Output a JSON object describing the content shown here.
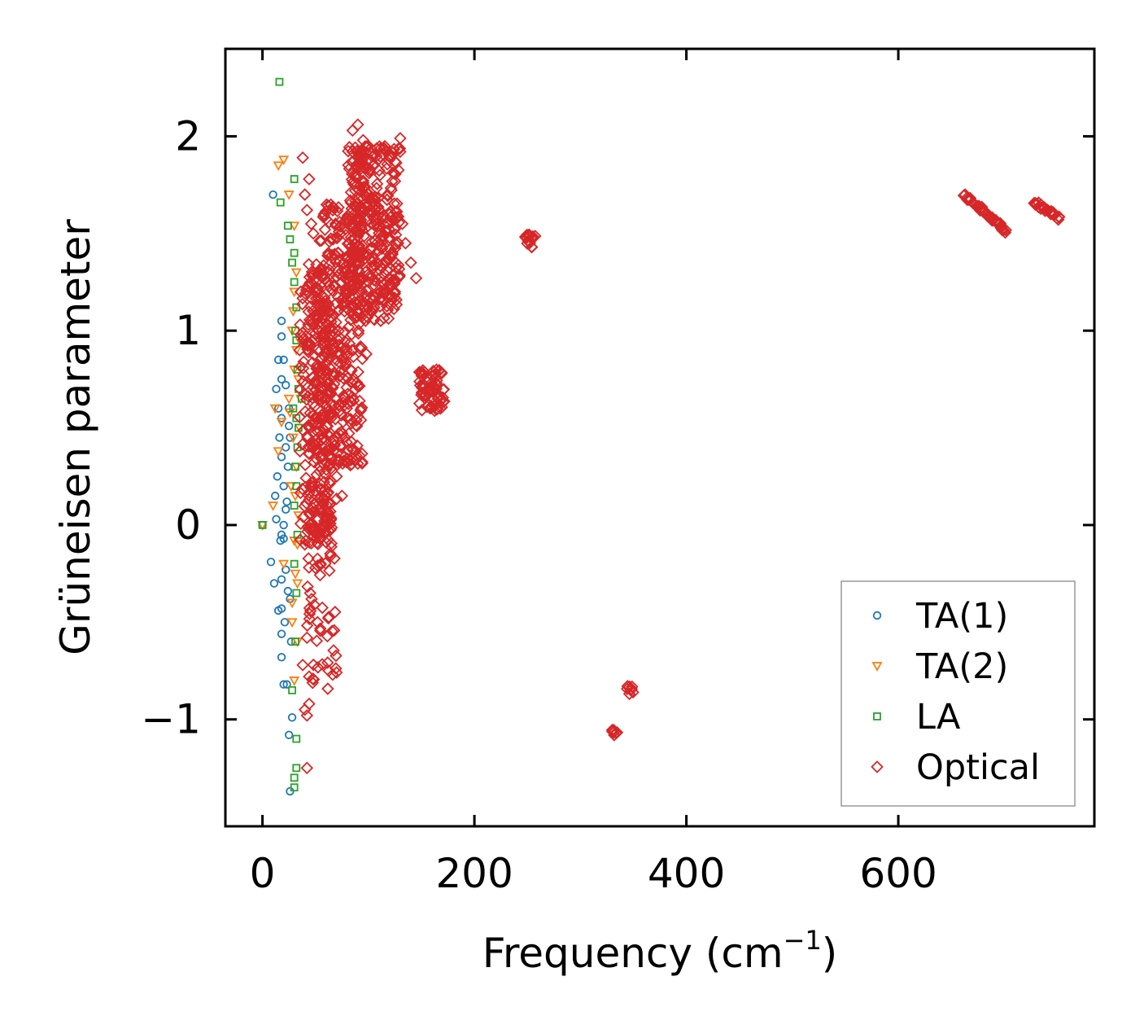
{
  "chart_data": {
    "type": "scatter",
    "xlabel": "Frequency (cm",
    "xlabel_sup": "−1",
    "xlabel_close": ")",
    "ylabel": "Grüneisen parameter",
    "xlim": [
      -35,
      785
    ],
    "ylim": [
      -1.55,
      2.45
    ],
    "x_ticks": [
      0,
      200,
      400,
      600
    ],
    "x_tick_labels": [
      "0",
      "200",
      "400",
      "600"
    ],
    "y_ticks": [
      -1,
      0,
      1,
      2
    ],
    "y_tick_labels": [
      "−1",
      "0",
      "1",
      "2"
    ],
    "grid": false,
    "legend_position": "bottom-right",
    "series": [
      {
        "name": "TA(1)",
        "marker": "circle",
        "color": "#1f77b4",
        "points": [
          [
            0,
            0
          ],
          [
            10,
            1.7
          ],
          [
            13,
            0.7
          ],
          [
            15,
            0.85
          ],
          [
            15,
            0.6
          ],
          [
            12,
            0.15
          ],
          [
            13,
            0.03
          ],
          [
            14,
            0.25
          ],
          [
            16,
            0.45
          ],
          [
            18,
            1.05
          ],
          [
            18,
            0.97
          ],
          [
            18,
            0.75
          ],
          [
            18,
            0.55
          ],
          [
            18,
            0.35
          ],
          [
            18,
            -0.05
          ],
          [
            18,
            -0.28
          ],
          [
            18,
            -0.43
          ],
          [
            18,
            -0.56
          ],
          [
            18,
            -0.68
          ],
          [
            20,
            0.85
          ],
          [
            20,
            0.2
          ],
          [
            20,
            0
          ],
          [
            20,
            -0.07
          ],
          [
            21,
            -0.5
          ],
          [
            22,
            0.72
          ],
          [
            22,
            0.4
          ],
          [
            22,
            0.08
          ],
          [
            22,
            -0.23
          ],
          [
            23,
            -0.82
          ],
          [
            24,
            0.3
          ],
          [
            24,
            -0.34
          ],
          [
            25,
            0.6
          ],
          [
            25,
            -1.08
          ],
          [
            26,
            0.45
          ],
          [
            26,
            -0.38
          ],
          [
            26,
            -1.37
          ],
          [
            27,
            -0.6
          ],
          [
            28,
            -0.99
          ],
          [
            8,
            -0.19
          ],
          [
            11,
            -0.3
          ],
          [
            17,
            -0.08
          ],
          [
            20,
            -0.82
          ],
          [
            23,
            0.12
          ],
          [
            25,
            0.51
          ],
          [
            15,
            -0.44
          ]
        ]
      },
      {
        "name": "TA(2)",
        "marker": "triangle-down",
        "color": "#ff7f0e",
        "points": [
          [
            0,
            0
          ],
          [
            15,
            1.85
          ],
          [
            20,
            1.88
          ],
          [
            25,
            1.7
          ],
          [
            30,
            1.54
          ],
          [
            10,
            0.1
          ],
          [
            12,
            0.6
          ],
          [
            15,
            0.38
          ],
          [
            18,
            0.53
          ],
          [
            20,
            -0.2
          ],
          [
            25,
            0.65
          ],
          [
            28,
            1.0
          ],
          [
            30,
            0.8
          ],
          [
            32,
            0.9
          ],
          [
            28,
            -0.5
          ],
          [
            30,
            -0.8
          ],
          [
            32,
            0.3
          ],
          [
            33,
            -0.1
          ],
          [
            35,
            0.5
          ],
          [
            30,
            1.2
          ],
          [
            27,
            0.2
          ],
          [
            33,
            -0.3
          ],
          [
            32,
            1.3
          ],
          [
            36,
            0.65
          ],
          [
            34,
            0.05
          ],
          [
            33,
            -0.6
          ],
          [
            29,
            0.45
          ],
          [
            31,
            -0.25
          ],
          [
            35,
            0.95
          ],
          [
            26,
            0.58
          ],
          [
            29,
            1.1
          ],
          [
            31,
            0.15
          ],
          [
            34,
            0.75
          ],
          [
            28,
            -0.4
          ],
          [
            30,
            -0.08
          ]
        ]
      },
      {
        "name": "LA",
        "marker": "square",
        "color": "#2ca02c",
        "points": [
          [
            0,
            0
          ],
          [
            16,
            2.28
          ],
          [
            17,
            1.66
          ],
          [
            30,
            1.78
          ],
          [
            24,
            1.54
          ],
          [
            26,
            1.47
          ],
          [
            30,
            1.4
          ],
          [
            28,
            1.35
          ],
          [
            30,
            1.25
          ],
          [
            32,
            1.12
          ],
          [
            32,
            0.95
          ],
          [
            33,
            0.8
          ],
          [
            34,
            0.7
          ],
          [
            37,
            0.65
          ],
          [
            32,
            0.55
          ],
          [
            33,
            0.4
          ],
          [
            31,
            0.3
          ],
          [
            32,
            0.2
          ],
          [
            30,
            0.1
          ],
          [
            30,
            -0.2
          ],
          [
            32,
            -0.35
          ],
          [
            28,
            -0.85
          ],
          [
            32,
            -1.1
          ],
          [
            32,
            -1.25
          ],
          [
            30,
            -1.3
          ],
          [
            30,
            -1.35
          ],
          [
            31,
            1.0
          ],
          [
            34,
            0.5
          ],
          [
            33,
            -0.05
          ],
          [
            29,
            0.6
          ],
          [
            31,
            -0.6
          ]
        ]
      },
      {
        "name": "Optical",
        "marker": "diamond",
        "color": "#d62728",
        "clusters": [
          {
            "x": [
              35,
              65
            ],
            "y": [
              -0.1,
              1.35
            ],
            "count": 260
          },
          {
            "x": [
              50,
              95
            ],
            "y": [
              0.3,
              1.65
            ],
            "count": 380
          },
          {
            "x": [
              80,
              130
            ],
            "y": [
              1.05,
              1.95
            ],
            "count": 360
          },
          {
            "x": [
              42,
              70
            ],
            "y": [
              -0.85,
              0.25
            ],
            "count": 70
          },
          {
            "x": [
              148,
              172
            ],
            "y": [
              0.58,
              0.8
            ],
            "count": 70
          },
          {
            "x": [
              248,
              258
            ],
            "y": [
              1.43,
              1.5
            ],
            "count": 20
          },
          {
            "x": [
              330,
              336
            ],
            "y": [
              -1.09,
              -1.05
            ],
            "count": 8
          },
          {
            "x": [
              342,
              350
            ],
            "y": [
              -0.87,
              -0.82
            ],
            "count": 8
          }
        ],
        "lines": [
          {
            "from": [
              662,
              1.7
            ],
            "to": [
              702,
              1.51
            ],
            "count": 45
          },
          {
            "from": [
              728,
              1.66
            ],
            "to": [
              752,
              1.58
            ],
            "count": 30
          }
        ],
        "points": [
          [
            38,
            1.89
          ],
          [
            44,
            1.78
          ],
          [
            40,
            1.7
          ],
          [
            42,
            1.62
          ],
          [
            46,
            1.55
          ],
          [
            85,
            2.03
          ],
          [
            90,
            2.06
          ],
          [
            95,
            1.98
          ],
          [
            130,
            1.99
          ],
          [
            135,
            1.45
          ],
          [
            140,
            1.35
          ],
          [
            145,
            1.27
          ],
          [
            98,
            0.88
          ],
          [
            80,
            0.55
          ],
          [
            70,
            0.25
          ],
          [
            55,
            0.15
          ],
          [
            40,
            -0.1
          ],
          [
            45,
            -0.35
          ],
          [
            52,
            -0.5
          ],
          [
            42,
            -0.58
          ],
          [
            38,
            -0.72
          ],
          [
            44,
            -0.78
          ],
          [
            40,
            -0.95
          ],
          [
            44,
            -0.92
          ],
          [
            42,
            -0.98
          ],
          [
            42,
            -1.25
          ],
          [
            55,
            -0.2
          ],
          [
            60,
            0.05
          ],
          [
            65,
            0.4
          ],
          [
            75,
            0.15
          ],
          [
            112,
            1.25
          ],
          [
            125,
            1.2
          ],
          [
            118,
            1.7
          ],
          [
            105,
            1.9
          ],
          [
            100,
            1.95
          ],
          [
            88,
            1.85
          ],
          [
            93,
            1.92
          ],
          [
            120,
            1.6
          ],
          [
            128,
            1.45
          ],
          [
            132,
            1.55
          ],
          [
            48,
            1.5
          ],
          [
            36,
            1.2
          ],
          [
            35,
            0.9
          ]
        ]
      }
    ]
  }
}
